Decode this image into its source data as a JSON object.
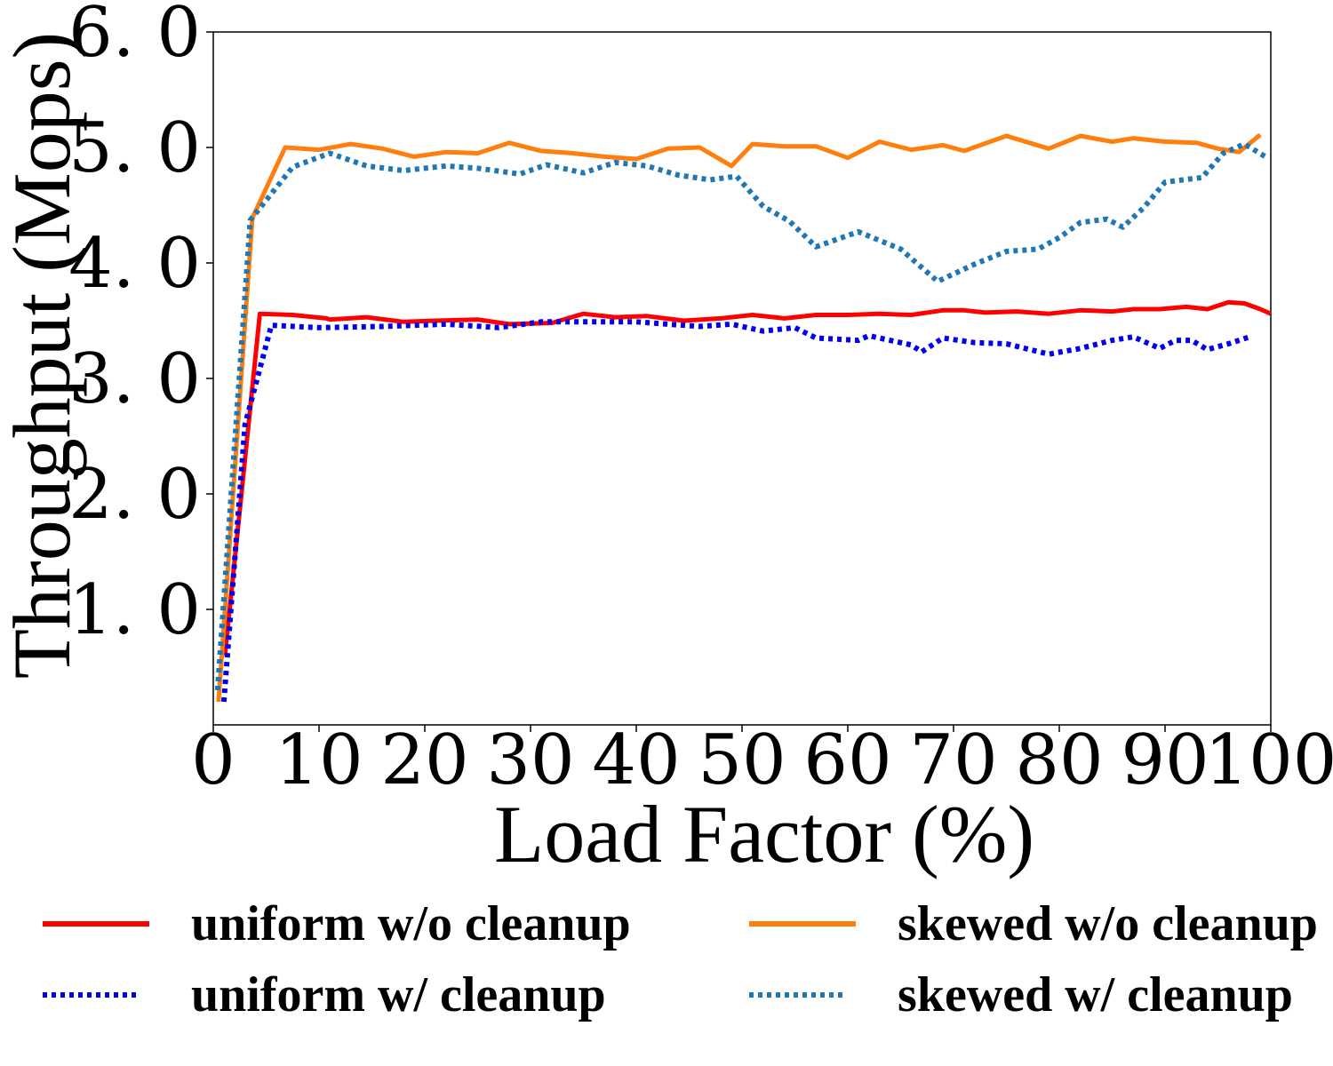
{
  "chart_data": {
    "type": "line",
    "title": "",
    "xlabel": "Load Factor (%)",
    "ylabel": "Throughput (Mops)",
    "xlim": [
      0,
      100
    ],
    "ylim": [
      0.0,
      6.0
    ],
    "grid": false,
    "legend_position": "bottom",
    "x_ticks": [
      0,
      10,
      20,
      30,
      40,
      50,
      60,
      70,
      80,
      90,
      100
    ],
    "x_tick_labels": [
      "0",
      "10",
      "20",
      "30",
      "40",
      "50",
      "60",
      "70",
      "80",
      "90",
      "100"
    ],
    "y_ticks": [
      1.0,
      2.0,
      3.0,
      4.0,
      5.0,
      6.0
    ],
    "y_tick_labels": [
      "1. 0",
      "2. 0",
      "3. 0",
      "4. 0",
      "5. 0",
      "6. 0"
    ],
    "series": [
      {
        "name": "uniform w/o cleanup",
        "color": "#ff0000",
        "style": "solid",
        "x": [
          1.1,
          4.4,
          7.5,
          10.7,
          11.0,
          14.5,
          18.0,
          21.0,
          25.0,
          28.0,
          32.0,
          35.0,
          38.0,
          41.0,
          44.5,
          48.0,
          51.0,
          54.0,
          57.0,
          60.0,
          63.0,
          66.0,
          69.0,
          71.0,
          73.0,
          76.0,
          79.0,
          82.0,
          85.0,
          87.0,
          89.5,
          92.0,
          94.0,
          96.0,
          97.5,
          99.0,
          100
        ],
        "y": [
          0.6,
          3.56,
          3.55,
          3.52,
          3.51,
          3.53,
          3.49,
          3.5,
          3.51,
          3.47,
          3.48,
          3.56,
          3.53,
          3.54,
          3.5,
          3.52,
          3.55,
          3.52,
          3.55,
          3.55,
          3.56,
          3.55,
          3.59,
          3.59,
          3.57,
          3.58,
          3.56,
          3.59,
          3.58,
          3.6,
          3.6,
          3.62,
          3.6,
          3.66,
          3.65,
          3.6,
          3.56
        ]
      },
      {
        "name": "uniform w/ cleanup",
        "color": "#0000ee",
        "style": "dotted",
        "x": [
          1.0,
          3.0,
          5.5,
          10.0,
          16.0,
          22.0,
          27.0,
          31.0,
          34.0,
          40.0,
          46.0,
          49.0,
          52.0,
          55.0,
          57.0,
          61.0,
          62.0,
          66.0,
          67.0,
          69.0,
          72.0,
          75.0,
          79.0,
          82.0,
          85.0,
          87.0,
          89.5,
          91.0,
          92.5,
          94.0,
          96.0,
          98.0
        ],
        "y": [
          0.2,
          2.6,
          3.46,
          3.44,
          3.45,
          3.47,
          3.44,
          3.49,
          3.49,
          3.49,
          3.45,
          3.47,
          3.41,
          3.44,
          3.35,
          3.33,
          3.37,
          3.29,
          3.23,
          3.35,
          3.31,
          3.3,
          3.21,
          3.26,
          3.33,
          3.36,
          3.26,
          3.33,
          3.33,
          3.25,
          3.3,
          3.36
        ]
      },
      {
        "name": "skewed w/o cleanup",
        "color": "#ff7f0e",
        "style": "solid",
        "x": [
          0.5,
          3.7,
          6.8,
          10.0,
          13.0,
          16.0,
          19.0,
          22.0,
          25.0,
          28.0,
          31.0,
          34.0,
          37.0,
          40.0,
          43.0,
          46.0,
          49.0,
          51.0,
          54.0,
          57.0,
          60.0,
          63.0,
          66.0,
          69.0,
          71.0,
          75.0,
          79.0,
          82.0,
          85.0,
          87.0,
          90.0,
          93.0,
          95.0,
          97.0,
          99.0
        ],
        "y": [
          0.2,
          4.39,
          5.0,
          4.98,
          5.03,
          4.99,
          4.92,
          4.96,
          4.95,
          5.04,
          4.97,
          4.95,
          4.92,
          4.9,
          4.99,
          5.0,
          4.84,
          5.03,
          5.01,
          5.01,
          4.91,
          5.05,
          4.98,
          5.02,
          4.97,
          5.1,
          4.99,
          5.1,
          5.05,
          5.08,
          5.05,
          5.04,
          4.99,
          4.96,
          5.11
        ]
      },
      {
        "name": "skewed w/ cleanup",
        "color": "#1f77b4",
        "style": "dotted",
        "x": [
          0.4,
          3.5,
          7.5,
          11.0,
          14.5,
          18.0,
          22.0,
          25.0,
          29.0,
          31.5,
          35.0,
          38.0,
          41.0,
          44.0,
          47.0,
          49.5,
          52.0,
          54.5,
          57.0,
          61.0,
          65.0,
          68.5,
          72.0,
          75.0,
          78.0,
          80.0,
          82.0,
          84.5,
          86.0,
          88.0,
          90.0,
          93.5,
          95.5,
          97.5,
          99.5
        ],
        "y": [
          0.3,
          4.37,
          4.83,
          4.95,
          4.84,
          4.8,
          4.84,
          4.82,
          4.77,
          4.85,
          4.78,
          4.87,
          4.84,
          4.76,
          4.72,
          4.75,
          4.49,
          4.36,
          4.14,
          4.27,
          4.12,
          3.84,
          3.99,
          4.1,
          4.12,
          4.22,
          4.35,
          4.38,
          4.31,
          4.48,
          4.7,
          4.74,
          4.95,
          5.03,
          4.92
        ]
      }
    ]
  }
}
